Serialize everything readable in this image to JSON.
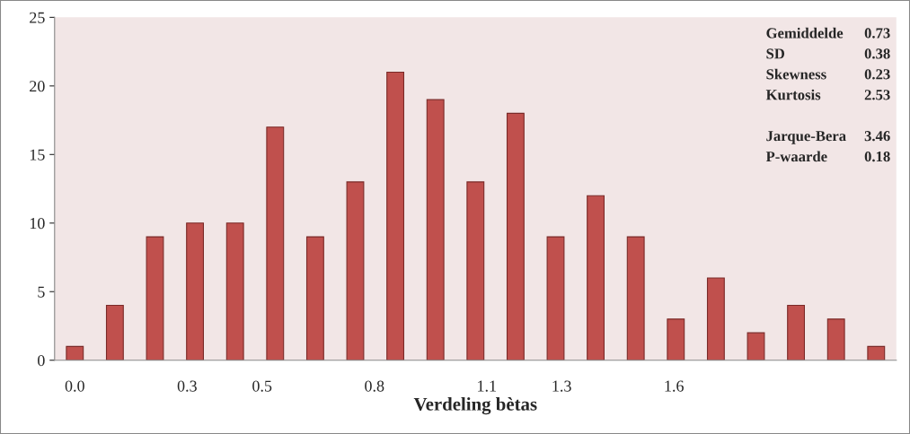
{
  "chart_data": {
    "type": "bar",
    "xlabel": "Verdeling bètas",
    "x": [
      0,
      0.107,
      0.214,
      0.321,
      0.428,
      0.535,
      0.642,
      0.749,
      0.856,
      0.963,
      1.07,
      1.177,
      1.284,
      1.391,
      1.498,
      1.605,
      1.712,
      1.819,
      1.926,
      2.033,
      2.14
    ],
    "values": [
      1,
      4,
      9,
      10,
      10,
      17,
      9,
      13,
      21,
      19,
      13,
      18,
      9,
      12,
      9,
      3,
      6,
      2,
      4,
      3,
      1
    ],
    "color": "#c0504d",
    "xlim": [
      -0.054,
      2.194
    ],
    "xticks": [
      {
        "value": 0,
        "label": "0.0"
      },
      0.3,
      0.5,
      0.8,
      1.1,
      1.3,
      1.6
    ],
    "ylim": [
      0,
      25
    ],
    "yticks": [
      0,
      5,
      10,
      15,
      20,
      25
    ],
    "grid": false,
    "legend": false,
    "annotations": [
      "Gemiddelde 0.73",
      "SD 0.38",
      "Skewness 0.23",
      "Kurtosis 2.53",
      "Jarque-Bera 3.46",
      "P-waarde 0.18"
    ]
  }
}
